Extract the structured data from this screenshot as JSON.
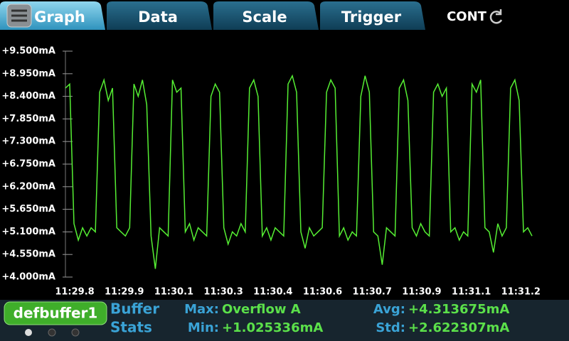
{
  "tabs": [
    "Graph",
    "Data",
    "Scale",
    "Trigger"
  ],
  "status": "CONT",
  "chart_data": {
    "type": "line",
    "ylim": [
      4.0,
      9.5
    ],
    "yticks": [
      {
        "value": 9.5,
        "label": "+9.500mA"
      },
      {
        "value": 8.95,
        "label": "+8.950mA"
      },
      {
        "value": 8.4,
        "label": "+8.400mA"
      },
      {
        "value": 7.85,
        "label": "+7.850mA"
      },
      {
        "value": 7.3,
        "label": "+7.300mA"
      },
      {
        "value": 6.75,
        "label": "+6.750mA"
      },
      {
        "value": 6.2,
        "label": "+6.200mA"
      },
      {
        "value": 5.65,
        "label": "+5.650mA"
      },
      {
        "value": 5.1,
        "label": "+5.100mA"
      },
      {
        "value": 4.55,
        "label": "+4.550mA"
      },
      {
        "value": 4.0,
        "label": "+4.000mA"
      }
    ],
    "x_tick_labels": [
      "11:29.8",
      "11:29.9",
      "11:30.1",
      "11:30.3",
      "11:30.4",
      "11:30.6",
      "11:30.7",
      "11:30.9",
      "11:31.1",
      "11:31.2"
    ],
    "series": [
      {
        "color": "#55ee33",
        "values": [
          8.6,
          8.7,
          5.3,
          4.9,
          5.2,
          5.0,
          5.2,
          5.1,
          8.5,
          8.8,
          8.3,
          8.6,
          5.2,
          5.1,
          5.0,
          5.2,
          8.7,
          8.4,
          8.8,
          8.2,
          5.0,
          4.2,
          5.2,
          5.1,
          5.0,
          8.8,
          8.5,
          8.6,
          5.1,
          5.3,
          4.9,
          5.2,
          5.1,
          5.0,
          8.4,
          8.7,
          8.5,
          5.2,
          4.8,
          5.1,
          5.0,
          5.3,
          5.1,
          8.6,
          8.8,
          8.4,
          5.0,
          5.2,
          4.9,
          5.2,
          5.1,
          5.0,
          8.7,
          8.9,
          8.5,
          5.1,
          4.7,
          5.2,
          5.0,
          5.1,
          5.2,
          8.5,
          8.8,
          8.6,
          5.0,
          5.2,
          4.9,
          5.1,
          5.0,
          8.4,
          8.9,
          8.5,
          5.1,
          5.0,
          4.3,
          5.2,
          5.1,
          5.0,
          8.6,
          8.8,
          8.3,
          5.2,
          5.0,
          5.3,
          5.1,
          5.0,
          8.5,
          8.7,
          8.4,
          8.6,
          5.1,
          5.2,
          4.9,
          5.1,
          5.0,
          8.7,
          8.5,
          8.8,
          5.2,
          5.1,
          4.6,
          5.3,
          5.0,
          5.2,
          8.6,
          8.8,
          8.3,
          5.1,
          5.2,
          5.0
        ]
      }
    ]
  },
  "buffer": {
    "name": "defbuffer1",
    "caption": [
      "Buffer",
      "Stats"
    ],
    "stats": [
      {
        "label": "Max:",
        "value": "Overflow A"
      },
      {
        "label": "Min:",
        "value": "+1.025336mA"
      },
      {
        "label": "Avg:",
        "value": "+4.313675mA"
      },
      {
        "label": "Std:",
        "value": "+2.622307mA"
      }
    ]
  }
}
